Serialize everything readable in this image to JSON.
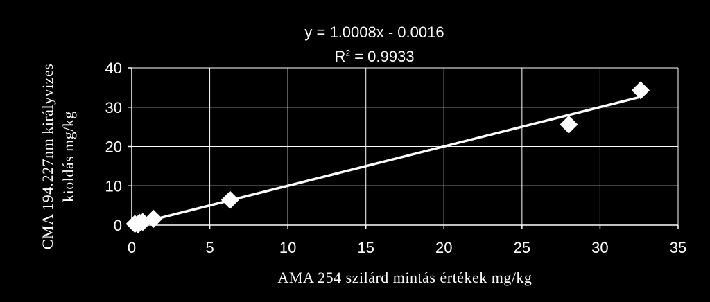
{
  "chart_data": {
    "type": "scatter",
    "title": "",
    "equation": "y = 1.0008x - 0.0016",
    "r2_prefix": "R",
    "r2_sup": "2",
    "r2_suffix": " = 0.9933",
    "xlabel": "AMA 254 szilárd mintás értékek mg/kg",
    "ylabel_line1": "CMA 194.227nm királyvizes",
    "ylabel_line2": "kioldás mg/kg",
    "xlim": [
      0,
      35
    ],
    "ylim": [
      0,
      40
    ],
    "xticks": [
      0,
      5,
      10,
      15,
      20,
      25,
      30,
      35
    ],
    "yticks": [
      0,
      10,
      20,
      30,
      40
    ],
    "grid": true,
    "legend": "none",
    "points": [
      {
        "x": 0.2,
        "y": 0.3
      },
      {
        "x": 0.4,
        "y": 0.2
      },
      {
        "x": 0.5,
        "y": 0.6
      },
      {
        "x": 0.7,
        "y": 0.8
      },
      {
        "x": 1.4,
        "y": 1.6
      },
      {
        "x": 6.3,
        "y": 6.4
      },
      {
        "x": 28.0,
        "y": 25.6
      },
      {
        "x": 32.6,
        "y": 34.3
      }
    ],
    "trendline": {
      "slope": 1.0008,
      "intercept": -0.0016,
      "x_range": [
        0.2,
        32.6
      ]
    },
    "colors": {
      "background": "#000000",
      "foreground": "#ffffff",
      "grid": "#ffffff"
    }
  }
}
